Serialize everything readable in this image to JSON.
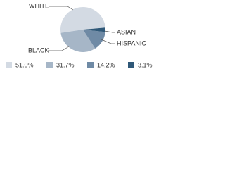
{
  "chart_data": {
    "type": "pie",
    "categories": [
      "WHITE",
      "BLACK",
      "HISPANIC",
      "ASIAN"
    ],
    "values": [
      51.0,
      31.7,
      14.2,
      3.1
    ],
    "value_labels": [
      "51.0%",
      "31.7%",
      "14.2%",
      "3.1%"
    ],
    "colors": [
      "#d3dae3",
      "#a6b6c7",
      "#6f8aa5",
      "#2f5878"
    ]
  }
}
